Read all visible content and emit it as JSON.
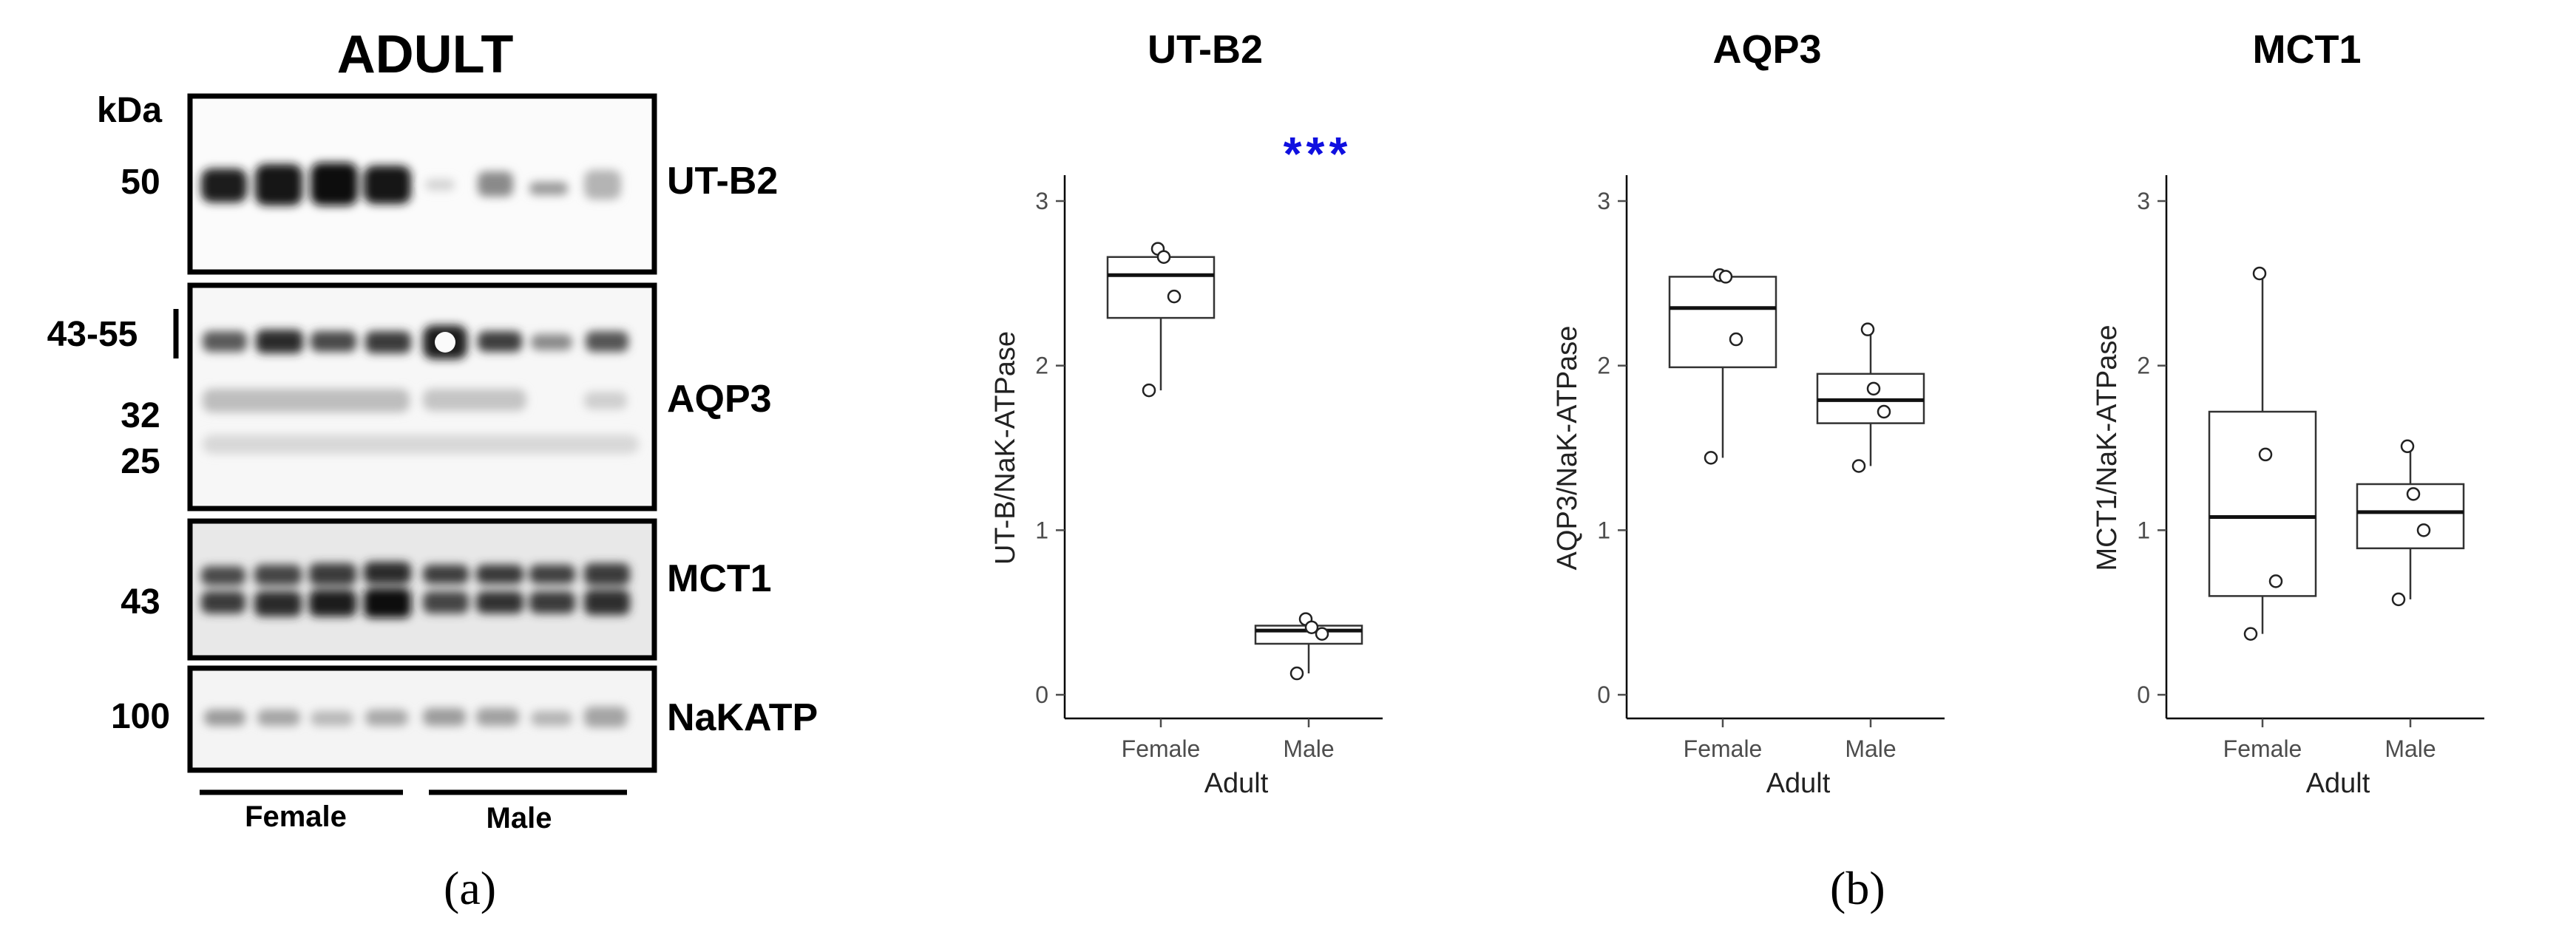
{
  "blot": {
    "title": "ADULT",
    "kda_label": "kDa",
    "group_labels": [
      "Female",
      "Male"
    ],
    "rows": [
      {
        "protein": "UT-B2",
        "markers": [
          "50"
        ]
      },
      {
        "protein": "AQP3",
        "markers": [
          "43-55",
          "32",
          "25"
        ]
      },
      {
        "protein": "MCT1",
        "markers": [
          "43"
        ]
      },
      {
        "protein": "NaKATP",
        "markers": [
          "100"
        ]
      }
    ]
  },
  "panel_labels": {
    "a": "(a)",
    "b": "(b)"
  },
  "chart_data": [
    {
      "type": "box",
      "title": "UT-B2",
      "ylabel": "UT-B/NaK-ATPase",
      "xlabel": "Adult",
      "ylim": [
        0,
        3
      ],
      "yticks": [
        "0",
        "1",
        "2",
        "3"
      ],
      "categories": [
        "Female",
        "Male"
      ],
      "boxes": [
        {
          "min": 1.85,
          "q1": 2.29,
          "median": 2.55,
          "q3": 2.66,
          "max": 2.71
        },
        {
          "min": 0.13,
          "q1": 0.31,
          "median": 0.39,
          "q3": 0.42,
          "max": 0.46
        }
      ],
      "points": [
        [
          2.71,
          2.66,
          2.42,
          1.85
        ],
        [
          0.46,
          0.41,
          0.37,
          0.13
        ]
      ],
      "annotation": "***",
      "annotation_color": "#1010e0"
    },
    {
      "type": "box",
      "title": "AQP3",
      "ylabel": "AQP3/NaK-ATPase",
      "xlabel": "Adult",
      "ylim": [
        0,
        3
      ],
      "yticks": [
        "0",
        "1",
        "2",
        "3"
      ],
      "categories": [
        "Female",
        "Male"
      ],
      "boxes": [
        {
          "min": 1.44,
          "q1": 1.99,
          "median": 2.35,
          "q3": 2.54,
          "max": 2.54
        },
        {
          "min": 1.39,
          "q1": 1.65,
          "median": 1.79,
          "q3": 1.95,
          "max": 2.22
        }
      ],
      "points": [
        [
          2.55,
          2.54,
          2.16,
          1.44
        ],
        [
          2.22,
          1.86,
          1.72,
          1.39
        ]
      ],
      "annotation": "",
      "annotation_color": "#1010e0"
    },
    {
      "type": "box",
      "title": "MCT1",
      "ylabel": "MCT1/NaK-ATPase",
      "xlabel": "Adult",
      "ylim": [
        0,
        3
      ],
      "yticks": [
        "0",
        "1",
        "2",
        "3"
      ],
      "categories": [
        "Female",
        "Male"
      ],
      "boxes": [
        {
          "min": 0.37,
          "q1": 0.6,
          "median": 1.08,
          "q3": 1.72,
          "max": 2.56
        },
        {
          "min": 0.58,
          "q1": 0.89,
          "median": 1.11,
          "q3": 1.28,
          "max": 1.51
        }
      ],
      "points": [
        [
          2.56,
          1.46,
          0.69,
          0.37
        ],
        [
          1.51,
          1.22,
          1.0,
          0.58
        ]
      ],
      "annotation": "",
      "annotation_color": "#1010e0"
    }
  ]
}
